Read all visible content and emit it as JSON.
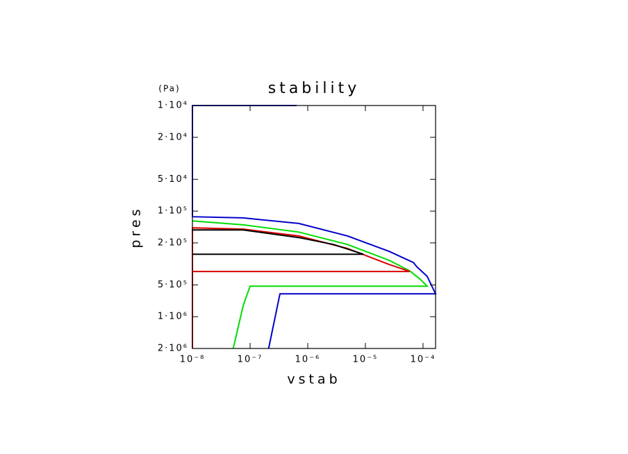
{
  "chart_data": {
    "type": "line",
    "title": "stability",
    "x_label": "vstab",
    "y_label": "pres",
    "y_unit": "(Pa)",
    "x_log": true,
    "y_log": true,
    "y_inverted": true,
    "xlim": [
      1e-08,
      0.000165
    ],
    "ylim": [
      10000,
      2000000
    ],
    "xticks": [
      {
        "value": 1e-08,
        "label": "10⁻⁸"
      },
      {
        "value": 1e-07,
        "label": "10⁻⁷"
      },
      {
        "value": 1e-06,
        "label": "10⁻⁶"
      },
      {
        "value": 1e-05,
        "label": "10⁻⁵"
      },
      {
        "value": 0.0001,
        "label": "10⁻⁴"
      }
    ],
    "yticks": [
      {
        "value": 10000,
        "label": "1·10⁴"
      },
      {
        "value": 20000,
        "label": "2·10⁴"
      },
      {
        "value": 50000,
        "label": "5·10⁴"
      },
      {
        "value": 100000,
        "label": "1·10⁵"
      },
      {
        "value": 200000,
        "label": "2·10⁵"
      },
      {
        "value": 500000,
        "label": "5·10⁵"
      },
      {
        "value": 1000000,
        "label": "1·10⁶"
      },
      {
        "value": 2000000,
        "label": "2·10⁶"
      }
    ],
    "series": [
      {
        "color": "#0000cc",
        "x": [
          6.4e-07,
          1e-08,
          1e-08,
          7.6e-08,
          7e-07,
          4.9e-06,
          2.6e-05,
          6.8e-05,
          7.8e-05,
          0.000118,
          0.000165,
          3.3e-07,
          2.1e-07
        ],
        "values": [
          10000,
          10000,
          113000,
          116000,
          131000,
          172000,
          241000,
          307000,
          336000,
          415000,
          607000,
          607000,
          2000000
        ]
      },
      {
        "color": "#00dd00",
        "x": [
          1e-08,
          7.6e-08,
          7e-07,
          4.9e-06,
          2.6e-05,
          5.9e-05,
          8.9e-05,
          0.000118,
          1e-07,
          7.6e-08,
          5.1e-08
        ],
        "values": [
          124000,
          135000,
          158000,
          207000,
          293000,
          368000,
          442000,
          514000,
          514000,
          785000,
          2000000
        ]
      },
      {
        "color": "#dd0000",
        "x": [
          1e-08,
          1e-08,
          7.6e-08,
          7e-07,
          4.9e-06,
          2.6e-05,
          5.9e-05,
          1e-08
        ],
        "values": [
          2000000,
          144000,
          148000,
          172000,
          226000,
          321000,
          373000,
          373000
        ]
      },
      {
        "color": "#000000",
        "x": [
          1e-08,
          7.6e-08,
          7e-07,
          2.8e-06,
          9.2e-06,
          1e-08
        ],
        "values": [
          151000,
          151000,
          178000,
          207000,
          256000,
          256000
        ]
      }
    ]
  }
}
